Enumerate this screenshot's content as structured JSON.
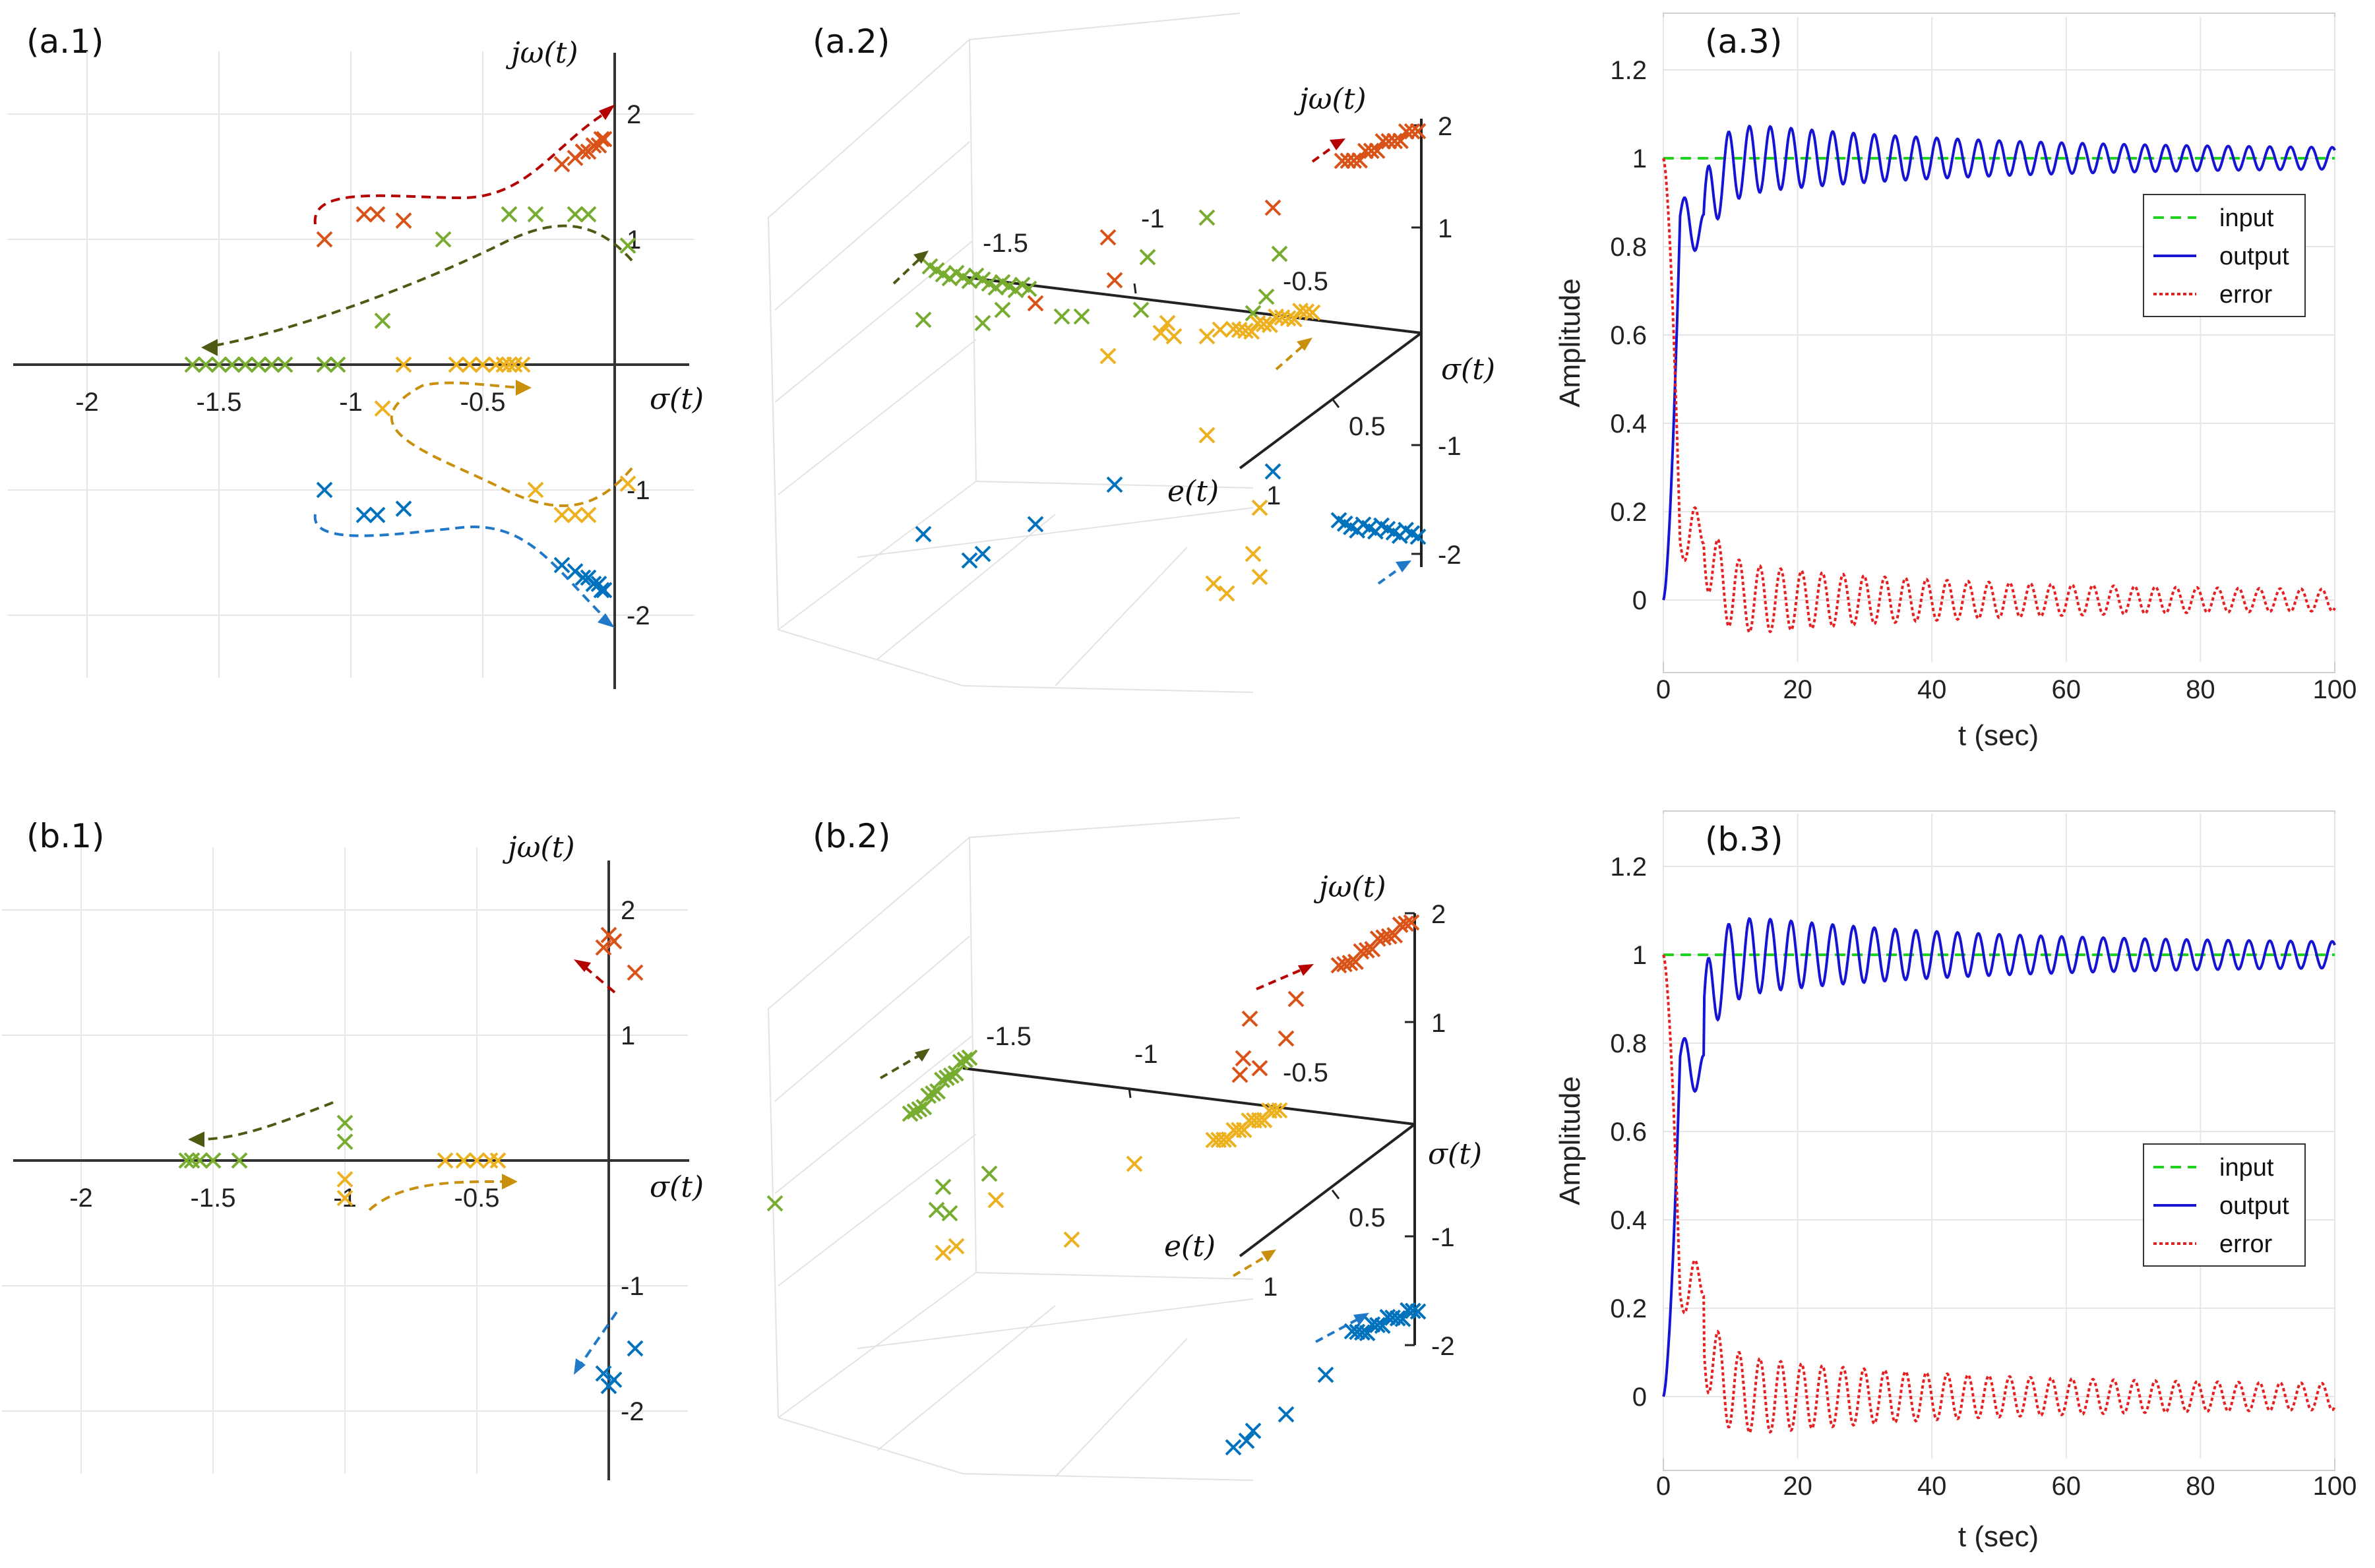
{
  "colors": {
    "orange": "#d95319",
    "green": "#77ac30",
    "yellow": "#edb120",
    "blue": "#0072bd",
    "dark_red": "#b50000",
    "dark_green": "#4d5a13",
    "dark_gold": "#c8900d",
    "dark_blue": "#1f78c8",
    "input": "#21d321",
    "output": "#1414d2",
    "error": "#e62020"
  },
  "chart_data": [
    {
      "id": "a1",
      "panel_label": "(a.1)",
      "type": "scatter",
      "xlabel": "σ(t)",
      "ylabel": "jω(t)",
      "xlim": [
        -2.3,
        0.3
      ],
      "ylim": [
        -2.5,
        2.5
      ],
      "x_ticks": [
        -2,
        -1.5,
        -1,
        -0.5
      ],
      "x_tick_labels": [
        "-2",
        "-1.5",
        "-1",
        "-0.5"
      ],
      "y_ticks": [
        2,
        1,
        -1,
        -2
      ],
      "y_tick_labels": [
        "2",
        "1",
        "-1",
        "-2"
      ],
      "series": [
        {
          "name": "orange",
          "color": "#d95319",
          "x": [
            -1.1,
            -0.95,
            -0.9,
            -0.8,
            -0.2,
            -0.15,
            -0.12,
            -0.1,
            -0.08,
            -0.06,
            -0.05,
            -0.04
          ],
          "y": [
            1.0,
            1.2,
            1.2,
            1.15,
            1.6,
            1.65,
            1.7,
            1.7,
            1.75,
            1.75,
            1.8,
            1.8
          ]
        },
        {
          "name": "green",
          "color": "#77ac30",
          "x": [
            -1.6,
            -1.55,
            -1.5,
            -1.45,
            -1.4,
            -1.35,
            -1.3,
            -1.25,
            -1.1,
            -1.05,
            -0.88,
            -0.65,
            -0.4,
            -0.3,
            -0.15,
            -0.1,
            0.05
          ],
          "y": [
            0,
            0,
            0,
            0,
            0,
            0,
            0,
            0,
            0,
            0,
            0.35,
            1.0,
            1.2,
            1.2,
            1.2,
            1.2,
            0.95
          ]
        },
        {
          "name": "yellow",
          "color": "#edb120",
          "x": [
            -0.88,
            -0.8,
            -0.6,
            -0.55,
            -0.5,
            -0.45,
            -0.42,
            -0.4,
            -0.38,
            -0.35,
            -0.3,
            -0.2,
            -0.15,
            -0.1,
            0.05
          ],
          "y": [
            -0.35,
            0,
            0,
            0,
            0,
            0,
            0,
            0,
            0,
            0,
            -1.0,
            -1.2,
            -1.2,
            -1.2,
            -0.95
          ]
        },
        {
          "name": "blue",
          "color": "#0072bd",
          "x": [
            -1.1,
            -0.95,
            -0.9,
            -0.8,
            -0.2,
            -0.15,
            -0.12,
            -0.1,
            -0.08,
            -0.06,
            -0.05,
            -0.04
          ],
          "y": [
            -1.0,
            -1.2,
            -1.2,
            -1.15,
            -1.6,
            -1.65,
            -1.7,
            -1.7,
            -1.75,
            -1.75,
            -1.8,
            -1.8
          ]
        }
      ]
    },
    {
      "id": "b1",
      "panel_label": "(b.1)",
      "type": "scatter",
      "xlabel": "σ(t)",
      "ylabel": "jω(t)",
      "xlim": [
        -2.3,
        0.3
      ],
      "ylim": [
        -2.5,
        2.5
      ],
      "x_ticks": [
        -2,
        -1.5,
        -1,
        -0.5
      ],
      "x_tick_labels": [
        "-2",
        "-1.5",
        "-1",
        "-0.5"
      ],
      "y_ticks": [
        2,
        1,
        -1,
        -2
      ],
      "y_tick_labels": [
        "2",
        "1",
        "-1",
        "-2"
      ],
      "series": [
        {
          "name": "orange",
          "color": "#d95319",
          "x": [
            0,
            0.02,
            -0.02,
            0.1
          ],
          "y": [
            1.8,
            1.75,
            1.7,
            1.5
          ]
        },
        {
          "name": "green",
          "color": "#77ac30",
          "x": [
            -1.6,
            -1.58,
            -1.55,
            -1.5,
            -1.4,
            -1.0,
            -1.0
          ],
          "y": [
            0,
            0,
            0,
            0,
            0,
            0.3,
            0.15
          ]
        },
        {
          "name": "yellow",
          "color": "#edb120",
          "x": [
            -1.0,
            -1.0,
            -0.62,
            -0.55,
            -0.5,
            -0.45,
            -0.42
          ],
          "y": [
            -0.15,
            -0.3,
            0,
            0,
            0,
            0,
            0
          ]
        },
        {
          "name": "blue",
          "color": "#0072bd",
          "x": [
            0,
            0.02,
            -0.02,
            0.1
          ],
          "y": [
            -1.8,
            -1.75,
            -1.7,
            -1.5
          ]
        }
      ]
    },
    {
      "id": "a2",
      "panel_label": "(a.2)",
      "type": "scatter",
      "xlabel": "σ(t)",
      "ylabel": "jω(t)",
      "zlabel": "e(t)",
      "x_tick_labels": [
        "-1.5",
        "-1",
        "-0.5"
      ],
      "y_tick_labels": [
        "2",
        "1",
        "-1",
        "-2"
      ],
      "z_tick_labels": [
        "0.5",
        "1"
      ]
    },
    {
      "id": "b2",
      "panel_label": "(b.2)",
      "type": "scatter",
      "xlabel": "σ(t)",
      "ylabel": "jω(t)",
      "zlabel": "e(t)",
      "x_tick_labels": [
        "-1.5",
        "-1",
        "-0.5"
      ],
      "y_tick_labels": [
        "2",
        "1",
        "-1",
        "-2"
      ],
      "z_tick_labels": [
        "0.5",
        "1"
      ]
    },
    {
      "id": "a3",
      "panel_label": "(a.3)",
      "type": "line",
      "xlabel": "t (sec)",
      "ylabel": "Amplitude",
      "xlim": [
        0,
        100
      ],
      "ylim": [
        -0.14,
        1.32
      ],
      "x_ticks": [
        0,
        20,
        40,
        60,
        80,
        100
      ],
      "x_tick_labels": [
        "0",
        "20",
        "40",
        "60",
        "80",
        "100"
      ],
      "y_ticks": [
        0,
        0.2,
        0.4,
        0.6,
        0.8,
        1,
        1.2
      ],
      "y_tick_labels": [
        "0",
        "0.2",
        "0.4",
        "0.6",
        "0.8",
        "1",
        "1.2"
      ],
      "legend": [
        "input",
        "output",
        "error"
      ],
      "legend_position": "upper-right",
      "response": {
        "rise_end": 2.5,
        "plateau": 0.87,
        "plateau_end": 6,
        "osc_amp0": 0.09,
        "osc_amp_end": 0.02,
        "period": 3.1
      }
    },
    {
      "id": "b3",
      "panel_label": "(b.3)",
      "type": "line",
      "xlabel": "t (sec)",
      "ylabel": "Amplitude",
      "xlim": [
        0,
        100
      ],
      "ylim": [
        -0.14,
        1.32
      ],
      "x_ticks": [
        0,
        20,
        40,
        60,
        80,
        100
      ],
      "x_tick_labels": [
        "0",
        "20",
        "40",
        "60",
        "80",
        "100"
      ],
      "y_ticks": [
        0,
        0.2,
        0.4,
        0.6,
        0.8,
        1,
        1.2
      ],
      "y_tick_labels": [
        "0",
        "0.2",
        "0.4",
        "0.6",
        "0.8",
        "1",
        "1.2"
      ],
      "legend": [
        "input",
        "output",
        "error"
      ],
      "legend_position": "lower-right",
      "response": {
        "rise_end": 2.5,
        "plateau": 0.77,
        "plateau_end": 6,
        "osc_amp0": 0.1,
        "osc_amp_end": 0.025,
        "period": 3.1
      }
    }
  ]
}
